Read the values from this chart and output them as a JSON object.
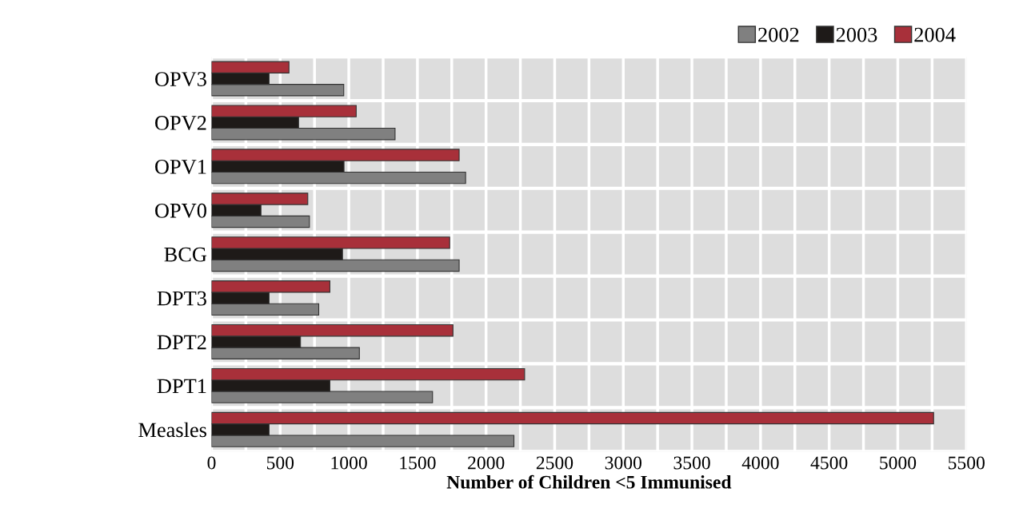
{
  "chart_data": {
    "type": "bar",
    "orientation": "horizontal",
    "xlabel": "Number of Children <5 Immunised",
    "categories": [
      "OPV3",
      "OPV2",
      "OPV1",
      "OPV0",
      "BCG",
      "DPT3",
      "DPT2",
      "DPT1",
      "Measles"
    ],
    "series": [
      {
        "name": "2002",
        "color": "#808080",
        "values": [
          963,
          1337,
          1851,
          713,
          1804,
          781,
          1077,
          1610,
          2203
        ]
      },
      {
        "name": "2003",
        "color": "#1e1a18",
        "values": [
          419,
          634,
          965,
          360,
          954,
          419,
          648,
          862,
          419
        ]
      },
      {
        "name": "2004",
        "color": "#a8303a",
        "values": [
          564,
          1054,
          1804,
          701,
          1735,
          862,
          1759,
          2281,
          5261
        ]
      }
    ],
    "xlim": [
      0,
      5500
    ],
    "xticks": [
      0,
      {
        "value": 250,
        "label": null
      },
      500,
      {
        "value": 750,
        "label": null
      },
      1000,
      {
        "value": 1250,
        "label": null
      },
      1500,
      {
        "value": 1750,
        "label": null
      },
      2000,
      {
        "value": 2250,
        "label": null
      },
      2500,
      {
        "value": 2750,
        "label": null
      },
      3000,
      {
        "value": 3250,
        "label": null
      },
      3500,
      {
        "value": 3750,
        "label": null
      },
      4000,
      {
        "value": 4250,
        "label": null
      },
      4500,
      {
        "value": 4750,
        "label": null
      },
      5000,
      {
        "value": 5250,
        "label": null
      },
      5500
    ],
    "grid": true,
    "legend": "top right"
  }
}
